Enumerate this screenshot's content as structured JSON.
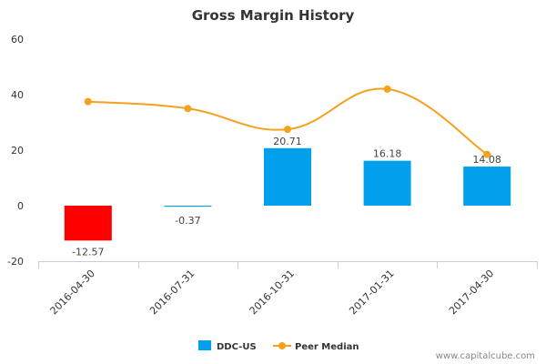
{
  "chart_data": {
    "type": "bar",
    "title": "Gross Margin History",
    "categories": [
      "2016-04-30",
      "2016-07-31",
      "2016-10-31",
      "2017-01-31",
      "2017-04-30"
    ],
    "series": [
      {
        "name": "DDC-US",
        "kind": "bar",
        "values": [
          -12.57,
          -0.37,
          20.71,
          16.18,
          14.08
        ],
        "value_labels": [
          "-12.57",
          "-0.37",
          "20.71",
          "16.18",
          "14.08"
        ],
        "color": "#00a0ed",
        "negative_color": "#ff0000"
      },
      {
        "name": "Peer Median",
        "kind": "line",
        "values": [
          37.5,
          35,
          27.5,
          42,
          18.5
        ],
        "color": "#f5a11c"
      }
    ],
    "yticks": [
      "60",
      "40",
      "20",
      "0",
      "-20"
    ],
    "ylim": [
      -20,
      60
    ],
    "xlabel": "",
    "ylabel": "",
    "legend_position": "bottom-center"
  },
  "credit": "www.capitalcube.com"
}
